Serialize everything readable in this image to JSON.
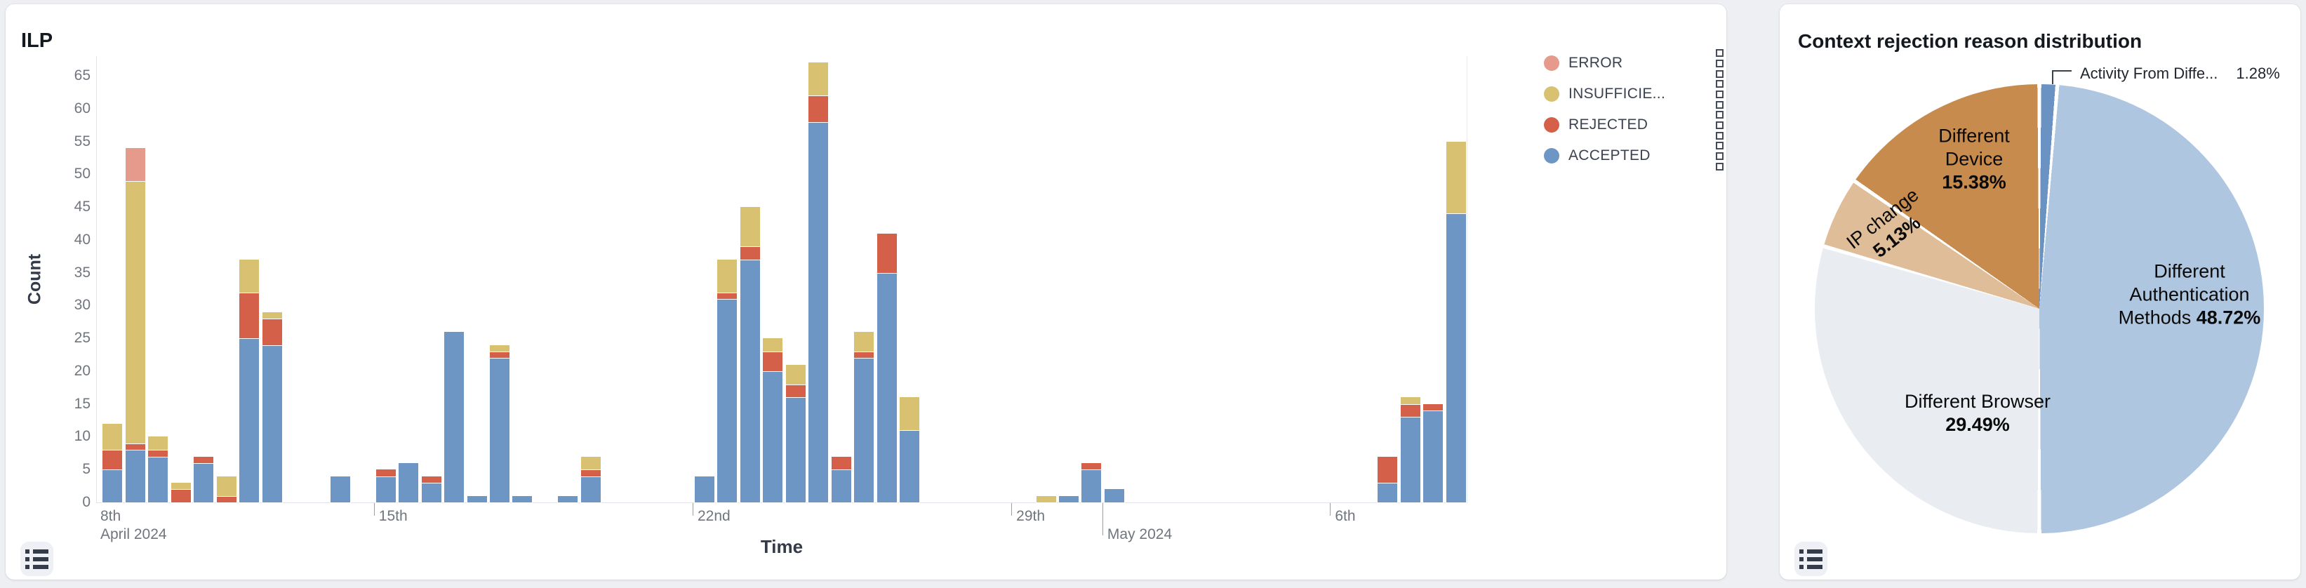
{
  "page_bg": "#edeff2",
  "panels": {
    "ilp": {
      "title": "ILP"
    },
    "pie": {
      "title": "Context rejection reason distribution"
    }
  },
  "icons": {
    "list_button": "list-icon",
    "legend_row_handle": "grip-squares-icon"
  },
  "chart_data": [
    {
      "type": "bar",
      "stacked": true,
      "title": "ILP",
      "xlabel": "Time",
      "ylabel": "Count",
      "ylim": [
        0,
        68
      ],
      "y_ticks": [
        0,
        5,
        10,
        15,
        20,
        25,
        30,
        35,
        40,
        45,
        50,
        55,
        60,
        65
      ],
      "grid": false,
      "legend_position": "right-top",
      "legend": [
        {
          "label": "ERROR",
          "color": "#e59a8c"
        },
        {
          "label": "INSUFFICIE...",
          "color": "#d8c271"
        },
        {
          "label": "REJECTED",
          "color": "#d4604a"
        },
        {
          "label": "ACCEPTED",
          "color": "#6d96c4"
        }
      ],
      "stack_order_bottom_to_top": [
        "ACCEPTED",
        "REJECTED",
        "INSUFFICIENT",
        "ERROR"
      ],
      "x_axis": {
        "unit": "days since 2024-04-08 00:00",
        "visible_range": [
          0.9,
          31.0
        ],
        "ticks": [
          {
            "day": 0,
            "line1": "8th",
            "line2": "April 2024",
            "clamped_to_left_edge": true
          },
          {
            "day": 7,
            "line1": "15th"
          },
          {
            "day": 14,
            "line1": "22nd"
          },
          {
            "day": 21,
            "line1": "29th"
          },
          {
            "day": 23,
            "line2": "May 2024",
            "long_tick": true
          },
          {
            "day": 28,
            "line1": "6th"
          }
        ]
      },
      "bars": [
        {
          "time": "2024-04-09 00:00",
          "day": 1.0,
          "ACCEPTED": 5,
          "REJECTED": 3,
          "INSUFFICIENT": 4
        },
        {
          "time": "2024-04-09 12:00",
          "day": 1.5,
          "ACCEPTED": 8,
          "REJECTED": 1,
          "INSUFFICIENT": 40,
          "ERROR": 5
        },
        {
          "time": "2024-04-10 00:00",
          "day": 2.0,
          "ACCEPTED": 7,
          "REJECTED": 1,
          "INSUFFICIENT": 2
        },
        {
          "time": "2024-04-10 12:00",
          "day": 2.5,
          "REJECTED": 2,
          "INSUFFICIENT": 1
        },
        {
          "time": "2024-04-11 00:00",
          "day": 3.0,
          "ACCEPTED": 6,
          "REJECTED": 1
        },
        {
          "time": "2024-04-11 12:00",
          "day": 3.5,
          "REJECTED": 1,
          "INSUFFICIENT": 3
        },
        {
          "time": "2024-04-12 00:00",
          "day": 4.0,
          "ACCEPTED": 25,
          "REJECTED": 7,
          "INSUFFICIENT": 5
        },
        {
          "time": "2024-04-12 12:00",
          "day": 4.5,
          "ACCEPTED": 24,
          "REJECTED": 4,
          "INSUFFICIENT": 1
        },
        {
          "time": "2024-04-14 00:00",
          "day": 6.0,
          "ACCEPTED": 4
        },
        {
          "time": "2024-04-15 00:00",
          "day": 7.0,
          "ACCEPTED": 4,
          "REJECTED": 1
        },
        {
          "time": "2024-04-15 12:00",
          "day": 7.5,
          "ACCEPTED": 6
        },
        {
          "time": "2024-04-16 00:00",
          "day": 8.0,
          "ACCEPTED": 3,
          "REJECTED": 1
        },
        {
          "time": "2024-04-16 12:00",
          "day": 8.5,
          "ACCEPTED": 26
        },
        {
          "time": "2024-04-17 00:00",
          "day": 9.0,
          "ACCEPTED": 1
        },
        {
          "time": "2024-04-17 12:00",
          "day": 9.5,
          "ACCEPTED": 22,
          "REJECTED": 1,
          "INSUFFICIENT": 1
        },
        {
          "time": "2024-04-18 00:00",
          "day": 10.0,
          "ACCEPTED": 1
        },
        {
          "time": "2024-04-19 00:00",
          "day": 11.0,
          "ACCEPTED": 1
        },
        {
          "time": "2024-04-19 12:00",
          "day": 11.5,
          "ACCEPTED": 4,
          "REJECTED": 1,
          "INSUFFICIENT": 2
        },
        {
          "time": "2024-04-22 00:00",
          "day": 14.0,
          "ACCEPTED": 4
        },
        {
          "time": "2024-04-22 12:00",
          "day": 14.5,
          "ACCEPTED": 31,
          "REJECTED": 1,
          "INSUFFICIENT": 5
        },
        {
          "time": "2024-04-23 00:00",
          "day": 15.0,
          "ACCEPTED": 37,
          "REJECTED": 2,
          "INSUFFICIENT": 6
        },
        {
          "time": "2024-04-23 12:00",
          "day": 15.5,
          "ACCEPTED": 20,
          "REJECTED": 3,
          "INSUFFICIENT": 2
        },
        {
          "time": "2024-04-24 00:00",
          "day": 16.0,
          "ACCEPTED": 16,
          "REJECTED": 2,
          "INSUFFICIENT": 3
        },
        {
          "time": "2024-04-24 12:00",
          "day": 16.5,
          "ACCEPTED": 58,
          "REJECTED": 4,
          "INSUFFICIENT": 5
        },
        {
          "time": "2024-04-25 00:00",
          "day": 17.0,
          "ACCEPTED": 5,
          "REJECTED": 2
        },
        {
          "time": "2024-04-25 12:00",
          "day": 17.5,
          "ACCEPTED": 22,
          "REJECTED": 1,
          "INSUFFICIENT": 3
        },
        {
          "time": "2024-04-26 00:00",
          "day": 18.0,
          "ACCEPTED": 35,
          "REJECTED": 6
        },
        {
          "time": "2024-04-26 12:00",
          "day": 18.5,
          "ACCEPTED": 11,
          "INSUFFICIENT": 5
        },
        {
          "time": "2024-04-29 12:00",
          "day": 21.5,
          "INSUFFICIENT": 1
        },
        {
          "time": "2024-04-30 00:00",
          "day": 22.0,
          "ACCEPTED": 1
        },
        {
          "time": "2024-04-30 12:00",
          "day": 22.5,
          "ACCEPTED": 5,
          "REJECTED": 1
        },
        {
          "time": "2024-05-01 00:00",
          "day": 23.0,
          "ACCEPTED": 2
        },
        {
          "time": "2024-05-07 00:00",
          "day": 29.0,
          "ACCEPTED": 3,
          "REJECTED": 4
        },
        {
          "time": "2024-05-07 12:00",
          "day": 29.5,
          "ACCEPTED": 13,
          "REJECTED": 2,
          "INSUFFICIENT": 1
        },
        {
          "time": "2024-05-08 00:00",
          "day": 30.0,
          "ACCEPTED": 14,
          "REJECTED": 1
        },
        {
          "time": "2024-05-08 12:00",
          "day": 30.5,
          "ACCEPTED": 44,
          "INSUFFICIENT": 11
        }
      ]
    },
    {
      "type": "pie",
      "title": "Context rejection reason distribution",
      "start_angle": "12 o'clock, clockwise",
      "slices": [
        {
          "label": "Activity From Diffe...",
          "value": 1.28,
          "color": "#6a92c2",
          "label_style": "callout"
        },
        {
          "label": "Different Authentication Methods",
          "value": 48.72,
          "color": "#afc6e0"
        },
        {
          "label": "Different Browser",
          "value": 29.49,
          "color": "#e9edf2"
        },
        {
          "label": "IP change",
          "value": 5.13,
          "color": "#dfbd98"
        },
        {
          "label": "Different Device",
          "value": 15.38,
          "color": "#c88b4e"
        }
      ]
    }
  ]
}
